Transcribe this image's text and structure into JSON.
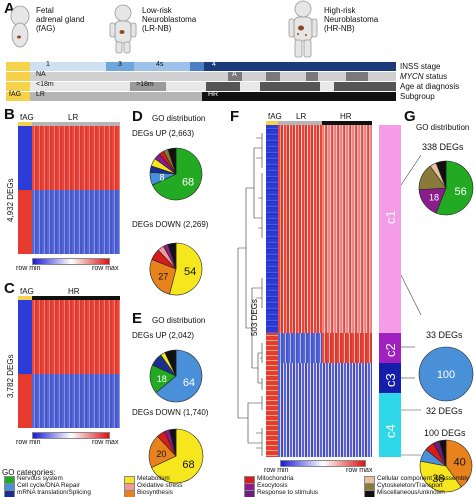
{
  "panels": {
    "A": "A",
    "B": "B",
    "C": "C",
    "D": "D",
    "E": "E",
    "F": "F",
    "G": "G"
  },
  "header": {
    "groups": [
      {
        "line1": "Fetal",
        "line2": "adrenal gland",
        "line3": "(fAG)"
      },
      {
        "line1": "Low-risk",
        "line2": "Neuroblastoma",
        "line3": "(LR-NB)"
      },
      {
        "line1": "High-risk",
        "line2": "Neuroblastoma",
        "line3": "(HR-NB)"
      }
    ]
  },
  "annotation_tracks": {
    "rows": [
      "INSS stage",
      "MYCN status",
      "Age at diagnosis",
      "Subgroup"
    ],
    "mycn_label_italic": "MYCN",
    "mycn_label_rest": " status",
    "stage_labels": [
      "1",
      "3",
      "4s",
      "4"
    ],
    "na_label": "NA",
    "a_label": "A",
    "age_under": "<18m",
    "age_over": ">18m",
    "subgroups": [
      "fAG",
      "LR",
      "HR"
    ]
  },
  "panel_b": {
    "col_labels": [
      "fAG",
      "LR"
    ],
    "ylabel": "4,932 DEGs",
    "colorbar_min": "row min",
    "colorbar_max": "row max"
  },
  "panel_c": {
    "col_labels": [
      "fAG",
      "HR"
    ],
    "ylabel": "3,782 DEGs",
    "colorbar_min": "row min",
    "colorbar_max": "row max"
  },
  "panel_d": {
    "title": "GO distribution",
    "up_label": "DEGs UP (2,663)",
    "down_label": "DEGs DOWN (2,269)"
  },
  "panel_e": {
    "title": "GO distribution",
    "up_label": "DEGs UP (2,042)",
    "down_label": "DEGs DOWN (1,740)"
  },
  "panel_f": {
    "col_labels": [
      "fAG",
      "LR",
      "HR"
    ],
    "ylabel": "503 DEGs",
    "clusters": [
      "c1",
      "c2",
      "c3",
      "c4"
    ],
    "colorbar_min": "row min",
    "colorbar_max": "row max"
  },
  "panel_g": {
    "title": "GO distribution",
    "counts": [
      "338 DEGs",
      "33 DEGs",
      "32 DEGs",
      "100 DEGs"
    ]
  },
  "legend": {
    "title": "GO categories:",
    "items": [
      {
        "label": "Nervous system",
        "color": "#22aa22"
      },
      {
        "label": "Cell cycle/DNA Repair",
        "color": "#4a90d9"
      },
      {
        "label": "mRNA translation/Splicing",
        "color": "#1c2f8c"
      },
      {
        "label": "Metabolism",
        "color": "#f5e61e"
      },
      {
        "label": "Oxidative stress",
        "color": "#f29a9a"
      },
      {
        "label": "Biosynthesis",
        "color": "#e8821c"
      },
      {
        "label": "Mitochondria",
        "color": "#d81b1b"
      },
      {
        "label": "Exocytosis",
        "color": "#8a1c8c"
      },
      {
        "label": "Response to stimulus",
        "color": "#6b1f7a"
      },
      {
        "label": "Cellular component disassembly",
        "color": "#e8c0a0"
      },
      {
        "label": "Cytoskeleton/Transport",
        "color": "#8a7a3a"
      },
      {
        "label": "Miscellaneous/unknown",
        "color": "#111111"
      }
    ]
  },
  "chart_data": [
    {
      "type": "pie",
      "name_key": "D-up",
      "slices": [
        {
          "category": "Nervous system",
          "value": 68,
          "color": "#22aa22",
          "label": "68"
        },
        {
          "category": "Cell cycle/DNA Repair",
          "value": 8,
          "color": "#4a90d9",
          "label": "8"
        },
        {
          "category": "mRNA translation/Splicing",
          "value": 4,
          "color": "#1c2f8c",
          "label": ""
        },
        {
          "category": "Metabolism",
          "value": 5,
          "color": "#f5e61e",
          "label": ""
        },
        {
          "category": "Exocytosis",
          "value": 4,
          "color": "#8a1c8c",
          "label": ""
        },
        {
          "category": "Mitochondria",
          "value": 3,
          "color": "#d81b1b",
          "label": ""
        },
        {
          "category": "Cytoskeleton/Transport",
          "value": 3,
          "color": "#8a7a3a",
          "label": ""
        },
        {
          "category": "Miscellaneous/unknown",
          "value": 5,
          "color": "#111111",
          "label": ""
        }
      ]
    },
    {
      "type": "pie",
      "name_key": "D-down",
      "slices": [
        {
          "category": "Metabolism",
          "value": 54,
          "color": "#f5e61e",
          "label": "54"
        },
        {
          "category": "Biosynthesis",
          "value": 27,
          "color": "#e8821c",
          "label": "27"
        },
        {
          "category": "Mitochondria",
          "value": 7,
          "color": "#d81b1b",
          "label": ""
        },
        {
          "category": "Oxidative stress",
          "value": 4,
          "color": "#f29a9a",
          "label": ""
        },
        {
          "category": "Exocytosis",
          "value": 3,
          "color": "#8a1c8c",
          "label": ""
        },
        {
          "category": "Miscellaneous/unknown",
          "value": 5,
          "color": "#111111",
          "label": ""
        }
      ]
    },
    {
      "type": "pie",
      "name_key": "E-up",
      "slices": [
        {
          "category": "Cell cycle/DNA Repair",
          "value": 64,
          "color": "#4a90d9",
          "label": "64"
        },
        {
          "category": "Nervous system",
          "value": 18,
          "color": "#22aa22",
          "label": "18"
        },
        {
          "category": "mRNA translation/Splicing",
          "value": 8,
          "color": "#1c2f8c",
          "label": ""
        },
        {
          "category": "Metabolism",
          "value": 3,
          "color": "#f5e61e",
          "label": ""
        },
        {
          "category": "Miscellaneous/unknown",
          "value": 7,
          "color": "#111111",
          "label": ""
        }
      ]
    },
    {
      "type": "pie",
      "name_key": "E-down",
      "slices": [
        {
          "category": "Metabolism",
          "value": 68,
          "color": "#f5e61e",
          "label": "68"
        },
        {
          "category": "Biosynthesis",
          "value": 20,
          "color": "#e8821c",
          "label": "20"
        },
        {
          "category": "Mitochondria",
          "value": 5,
          "color": "#d81b1b",
          "label": ""
        },
        {
          "category": "Exocytosis",
          "value": 3,
          "color": "#8a1c8c",
          "label": ""
        },
        {
          "category": "Miscellaneous/unknown",
          "value": 4,
          "color": "#111111",
          "label": ""
        }
      ]
    },
    {
      "type": "pie",
      "name_key": "G-c1",
      "slices": [
        {
          "category": "Nervous system",
          "value": 56,
          "color": "#22aa22",
          "label": "56"
        },
        {
          "category": "Exocytosis",
          "value": 18,
          "color": "#8a1c8c",
          "label": "18"
        },
        {
          "category": "Cytoskeleton/Transport",
          "value": 16,
          "color": "#8a7a3a",
          "label": ""
        },
        {
          "category": "Cellular component disassembly",
          "value": 4,
          "color": "#e8c0a0",
          "label": ""
        },
        {
          "category": "Miscellaneous/unknown",
          "value": 6,
          "color": "#111111",
          "label": ""
        }
      ]
    },
    {
      "type": "pie",
      "name_key": "G-c2",
      "slices": [
        {
          "category": "Cell cycle/DNA Repair",
          "value": 100,
          "color": "#4a90d9",
          "label": "100"
        }
      ]
    },
    {
      "type": "pie",
      "name_key": "G-c4",
      "slices": [
        {
          "category": "Biosynthesis",
          "value": 40,
          "color": "#e8821c",
          "label": "40"
        },
        {
          "category": "Metabolism",
          "value": 38,
          "color": "#f5e61e",
          "label": "38"
        },
        {
          "category": "Cell cycle/DNA Repair",
          "value": 8,
          "color": "#4a90d9",
          "label": ""
        },
        {
          "category": "Mitochondria",
          "value": 6,
          "color": "#d81b1b",
          "label": ""
        },
        {
          "category": "Response to stimulus",
          "value": 4,
          "color": "#6b1f7a",
          "label": ""
        },
        {
          "category": "Miscellaneous/unknown",
          "value": 4,
          "color": "#111111",
          "label": ""
        }
      ]
    }
  ]
}
